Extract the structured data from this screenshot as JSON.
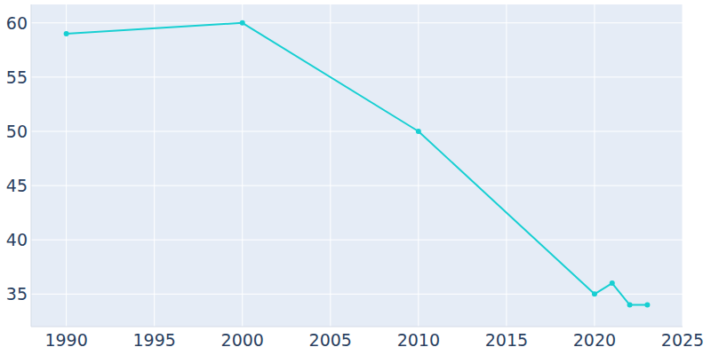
{
  "chart_data": {
    "type": "line",
    "x": [
      1990,
      2000,
      2010,
      2020,
      2021,
      2022,
      2023
    ],
    "values": [
      59,
      60,
      50,
      35,
      36,
      34,
      34
    ],
    "color": "#17cfd2",
    "marker": "circle",
    "xlim": [
      1988,
      2025
    ],
    "xticks": [
      1990,
      1995,
      2000,
      2005,
      2010,
      2015,
      2020,
      2025
    ],
    "ylim": [
      32,
      61.7
    ],
    "yticks": [
      35,
      40,
      45,
      50,
      55,
      60
    ],
    "grid": true
  }
}
